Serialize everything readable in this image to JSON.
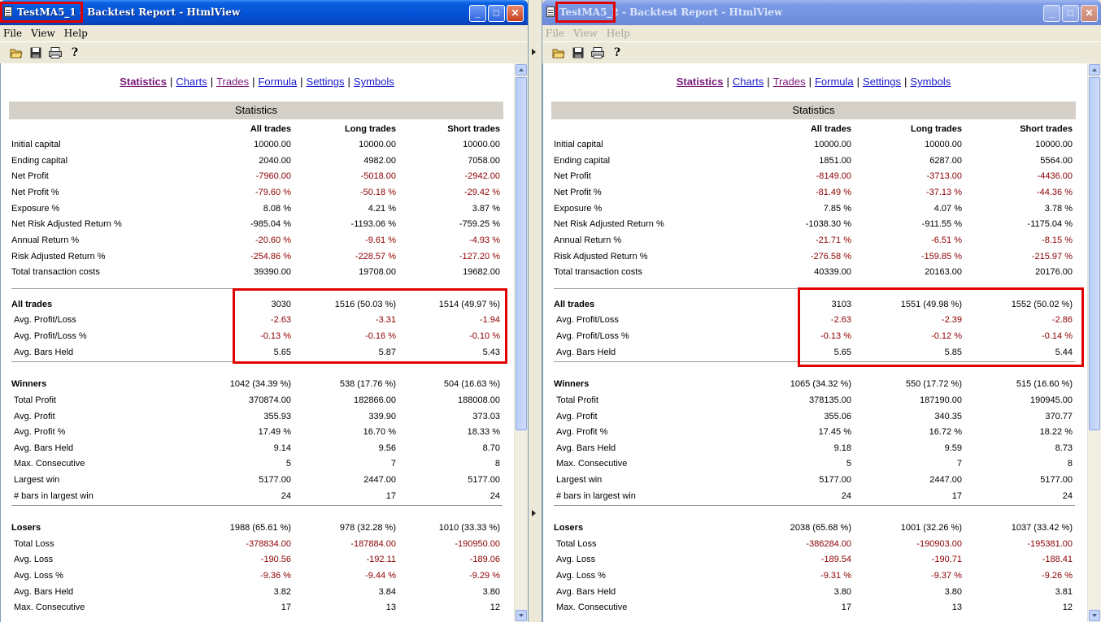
{
  "menus": [
    "File",
    "View",
    "Help"
  ],
  "nav_links": [
    "Statistics",
    "Charts",
    "Trades",
    "Formula",
    "Settings",
    "Symbols"
  ],
  "section_title": "Statistics",
  "column_headers": [
    "All trades",
    "Long trades",
    "Short trades"
  ],
  "windows": [
    {
      "title": "TestMA5_1 - Backtest Report - HtmlView",
      "rows": [
        [
          "Initial capital",
          "10000.00",
          "10000.00",
          "10000.00"
        ],
        [
          "Ending capital",
          "2040.00",
          "4982.00",
          "7058.00"
        ],
        [
          "Net Profit",
          "-7960.00",
          "-5018.00",
          "-2942.00"
        ],
        [
          "Net Profit %",
          "-79.60 %",
          "-50.18 %",
          "-29.42 %"
        ],
        [
          "Exposure %",
          "8.08 %",
          "4.21 %",
          "3.87 %"
        ],
        [
          "Net Risk Adjusted Return %",
          "-985.04 %",
          "-1193.06 %",
          "-759.25 %"
        ],
        [
          "Annual Return %",
          "-20.60 %",
          "-9.61 %",
          "-4.93 %"
        ],
        [
          "Risk Adjusted Return %",
          "-254.86 %",
          "-228.57 %",
          "-127.20 %"
        ],
        [
          "Total transaction costs",
          "39390.00",
          "19708.00",
          "19682.00"
        ],
        [
          "All trades",
          "3030",
          "1516 (50.03 %)",
          "1514 (49.97 %)"
        ],
        [
          "Avg. Profit/Loss",
          "-2.63",
          "-3.31",
          "-1.94"
        ],
        [
          "Avg. Profit/Loss %",
          "-0.13 %",
          "-0.16 %",
          "-0.10 %"
        ],
        [
          "Avg. Bars Held",
          "5.65",
          "5.87",
          "5.43"
        ],
        [
          "Winners",
          "1042 (34.39 %)",
          "538 (17.76 %)",
          "504 (16.63 %)"
        ],
        [
          "Total Profit",
          "370874.00",
          "182866.00",
          "188008.00"
        ],
        [
          "Avg. Profit",
          "355.93",
          "339.90",
          "373.03"
        ],
        [
          "Avg. Profit %",
          "17.49 %",
          "16.70 %",
          "18.33 %"
        ],
        [
          "Avg. Bars Held",
          "9.14",
          "9.56",
          "8.70"
        ],
        [
          "Max. Consecutive",
          "5",
          "7",
          "8"
        ],
        [
          "Largest win",
          "5177.00",
          "2447.00",
          "5177.00"
        ],
        [
          "# bars in largest win",
          "24",
          "17",
          "24"
        ],
        [
          "Losers",
          "1988 (65.61 %)",
          "978 (32.28 %)",
          "1010 (33.33 %)"
        ],
        [
          "Total Loss",
          "-378834.00",
          "-187884.00",
          "-190950.00"
        ],
        [
          "Avg. Loss",
          "-190.56",
          "-192.11",
          "-189.06"
        ],
        [
          "Avg. Loss %",
          "-9.36 %",
          "-9.44 %",
          "-9.29 %"
        ],
        [
          "Avg. Bars Held",
          "3.82",
          "3.84",
          "3.80"
        ],
        [
          "Max. Consecutive",
          "17",
          "13",
          "12"
        ]
      ]
    },
    {
      "title": "TestMA5_2 - Backtest Report - HtmlView",
      "rows": [
        [
          "Initial capital",
          "10000.00",
          "10000.00",
          "10000.00"
        ],
        [
          "Ending capital",
          "1851.00",
          "6287.00",
          "5564.00"
        ],
        [
          "Net Profit",
          "-8149.00",
          "-3713.00",
          "-4436.00"
        ],
        [
          "Net Profit %",
          "-81.49 %",
          "-37.13 %",
          "-44.36 %"
        ],
        [
          "Exposure %",
          "7.85 %",
          "4.07 %",
          "3.78 %"
        ],
        [
          "Net Risk Adjusted Return %",
          "-1038.30 %",
          "-911.55 %",
          "-1175.04 %"
        ],
        [
          "Annual Return %",
          "-21.71 %",
          "-6.51 %",
          "-8.15 %"
        ],
        [
          "Risk Adjusted Return %",
          "-276.58 %",
          "-159.85 %",
          "-215.97 %"
        ],
        [
          "Total transaction costs",
          "40339.00",
          "20163.00",
          "20176.00"
        ],
        [
          "All trades",
          "3103",
          "1551 (49.98 %)",
          "1552 (50.02 %)"
        ],
        [
          "Avg. Profit/Loss",
          "-2.63",
          "-2.39",
          "-2.86"
        ],
        [
          "Avg. Profit/Loss %",
          "-0.13 %",
          "-0.12 %",
          "-0.14 %"
        ],
        [
          "Avg. Bars Held",
          "5.65",
          "5.85",
          "5.44"
        ],
        [
          "Winners",
          "1065 (34.32 %)",
          "550 (17.72 %)",
          "515 (16.60 %)"
        ],
        [
          "Total Profit",
          "378135.00",
          "187190.00",
          "190945.00"
        ],
        [
          "Avg. Profit",
          "355.06",
          "340.35",
          "370.77"
        ],
        [
          "Avg. Profit %",
          "17.45 %",
          "16.72 %",
          "18.22 %"
        ],
        [
          "Avg. Bars Held",
          "9.18",
          "9.59",
          "8.73"
        ],
        [
          "Max. Consecutive",
          "5",
          "7",
          "8"
        ],
        [
          "Largest win",
          "5177.00",
          "2447.00",
          "5177.00"
        ],
        [
          "# bars in largest win",
          "24",
          "17",
          "24"
        ],
        [
          "Losers",
          "2038 (65.68 %)",
          "1001 (32.26 %)",
          "1037 (33.42 %)"
        ],
        [
          "Total Loss",
          "-386284.00",
          "-190903.00",
          "-195381.00"
        ],
        [
          "Avg. Loss",
          "-189.54",
          "-190.71",
          "-188.41"
        ],
        [
          "Avg. Loss %",
          "-9.31 %",
          "-9.37 %",
          "-9.26 %"
        ],
        [
          "Avg. Bars Held",
          "3.80",
          "3.80",
          "3.81"
        ],
        [
          "Max. Consecutive",
          "17",
          "13",
          "12"
        ]
      ]
    }
  ]
}
